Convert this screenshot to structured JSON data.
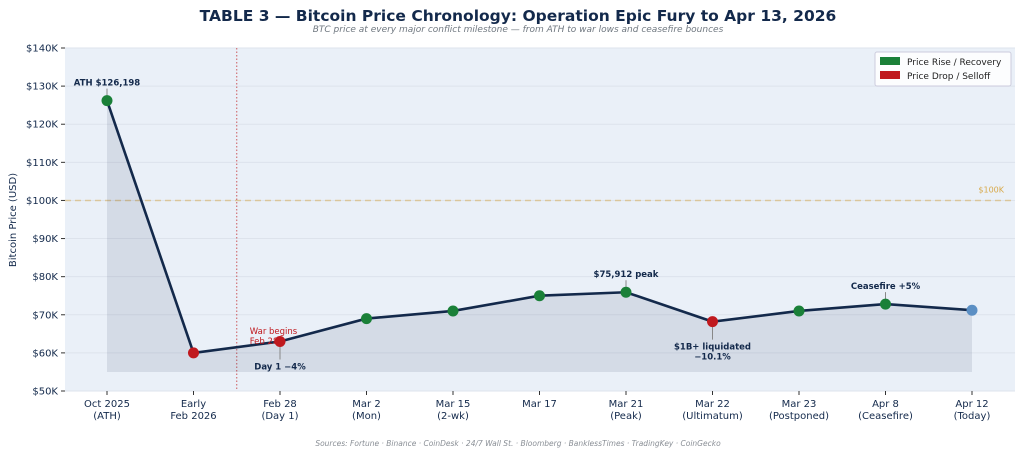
{
  "chart_data": {
    "type": "line",
    "title": "TABLE 3 — Bitcoin Price Chronology: Operation Epic Fury to Apr 13, 2026",
    "subtitle": "BTC price at every major conflict milestone — from ATH to war lows and ceasefire bounces",
    "ylabel": "Bitcoin Price (USD)",
    "xlabel": "",
    "ylim": [
      50000,
      140000
    ],
    "yticks": [
      50000,
      60000,
      70000,
      80000,
      90000,
      100000,
      110000,
      120000,
      130000,
      140000
    ],
    "ytick_labels": [
      "$50K",
      "$60K",
      "$70K",
      "$80K",
      "$90K",
      "$100K",
      "$110K",
      "$120K",
      "$130K",
      "$140K"
    ],
    "categories": [
      [
        "Oct 2025",
        "(ATH)"
      ],
      [
        "Early",
        "Feb 2026"
      ],
      [
        "Feb 28",
        "(Day 1)"
      ],
      [
        "Mar 2",
        "(Mon)"
      ],
      [
        "Mar 15",
        "(2-wk)"
      ],
      [
        "Mar 17",
        ""
      ],
      [
        "Mar 21",
        "(Peak)"
      ],
      [
        "Mar 22",
        "(Ultimatum)"
      ],
      [
        "Mar 23",
        "(Postponed)"
      ],
      [
        "Apr 8",
        "(Ceasefire)"
      ],
      [
        "Apr 12",
        "(Today)"
      ]
    ],
    "values": [
      126198,
      60000,
      63000,
      69000,
      71000,
      75000,
      75912,
      68200,
      71000,
      72800,
      71200
    ],
    "point_types": [
      "rise",
      "drop",
      "drop",
      "rise",
      "rise",
      "rise",
      "rise",
      "drop",
      "rise",
      "rise",
      "today"
    ],
    "fill_base": 55000,
    "reference_line": {
      "value": 100000,
      "label": "$100K"
    },
    "event_line": {
      "position": 1.5,
      "label_line1": "War begins",
      "label_line2": "Feb 28"
    },
    "annotations": [
      {
        "index": 0,
        "lines": [
          "ATH $126,198"
        ],
        "pos": "above"
      },
      {
        "index": 2,
        "lines": [
          "Day 1 −4%"
        ],
        "pos": "below"
      },
      {
        "index": 6,
        "lines": [
          "$75,912 peak"
        ],
        "pos": "above"
      },
      {
        "index": 7,
        "lines": [
          "$1B+ liquidated",
          "−10.1%"
        ],
        "pos": "below"
      },
      {
        "index": 9,
        "lines": [
          "Ceasefire +5%"
        ],
        "pos": "above"
      }
    ],
    "legend": {
      "placement": "top-right",
      "items": [
        {
          "label": "Price Rise / Recovery",
          "color": "#1a8038"
        },
        {
          "label": "Price Drop / Selloff",
          "color": "#c0191e"
        }
      ]
    },
    "grid": true
  },
  "colors": {
    "rise": "#1a8038",
    "drop": "#c0191e",
    "today": "#5b8fc4",
    "line": "#13294b",
    "ref": "#d8a94a"
  },
  "footer": "Sources: Fortune · Binance · CoinDesk · 24/7 Wall St. · Bloomberg · BanklessTimes · TradingKey · CoinGecko"
}
